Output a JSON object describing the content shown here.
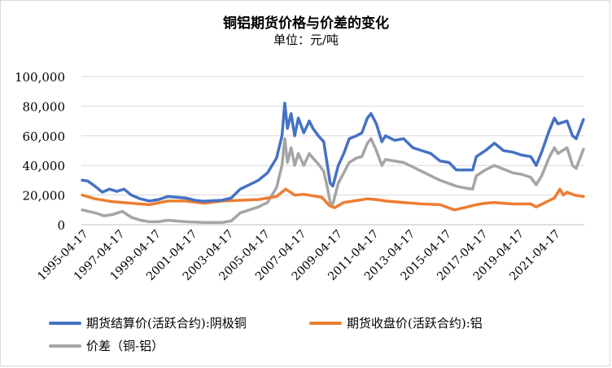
{
  "chart_data": {
    "type": "line",
    "title": "铜铝期货价格与价差的变化",
    "subtitle": "单位：元/吨",
    "ylim": [
      0,
      100000
    ],
    "yticks": [
      0,
      20000,
      40000,
      60000,
      80000,
      100000
    ],
    "ytick_labels": [
      "0",
      "20,000",
      "40,000",
      "60,000",
      "80,000",
      "100,000"
    ],
    "xlim": [
      1995.25,
      2022.95
    ],
    "xticks": [
      1995.29,
      1997.29,
      1999.29,
      2001.29,
      2003.29,
      2005.29,
      2007.29,
      2009.29,
      2011.29,
      2013.29,
      2015.29,
      2017.29,
      2019.29,
      2021.29
    ],
    "xtick_labels": [
      "1995-04-17",
      "1997-04-17",
      "1999-04-17",
      "2001-04-17",
      "2003-04-17",
      "2005-04-17",
      "2007-04-17",
      "2009-04-17",
      "2011-04-17",
      "2013-04-17",
      "2015-04-17",
      "2017-04-17",
      "2019-04-17",
      "2021-04-17"
    ],
    "legend_position": "bottom",
    "series": [
      {
        "name": "期货结算价(活跃合约):阴极铜",
        "color": "#4472C4",
        "x": [
          1995.3,
          1995.6,
          1996.0,
          1996.4,
          1996.8,
          1997.2,
          1997.6,
          1998.0,
          1998.5,
          1999.0,
          1999.5,
          2000.0,
          2000.5,
          2001.0,
          2001.5,
          2002.0,
          2002.5,
          2003.0,
          2003.5,
          2004.0,
          2004.5,
          2005.0,
          2005.5,
          2006.0,
          2006.3,
          2006.45,
          2006.6,
          2006.8,
          2007.0,
          2007.2,
          2007.5,
          2007.8,
          2008.0,
          2008.3,
          2008.6,
          2008.8,
          2008.95,
          2009.1,
          2009.4,
          2009.7,
          2010.0,
          2010.4,
          2010.7,
          2011.0,
          2011.2,
          2011.5,
          2011.8,
          2012.0,
          2012.5,
          2013.0,
          2013.5,
          2014.0,
          2014.5,
          2015.0,
          2015.5,
          2015.9,
          2016.3,
          2016.8,
          2017.0,
          2017.5,
          2018.0,
          2018.5,
          2019.0,
          2019.5,
          2020.0,
          2020.3,
          2020.6,
          2021.0,
          2021.3,
          2021.5,
          2022.0,
          2022.3,
          2022.5,
          2022.9
        ],
        "values": [
          30000,
          29500,
          26000,
          22000,
          24000,
          22500,
          24000,
          20000,
          17500,
          16000,
          17000,
          19000,
          18500,
          18000,
          16500,
          15800,
          16200,
          16500,
          18000,
          24000,
          27000,
          30000,
          35000,
          45000,
          60000,
          82000,
          65000,
          75000,
          60000,
          72000,
          62000,
          70000,
          65000,
          60000,
          56000,
          40000,
          28000,
          26000,
          40000,
          48000,
          58000,
          60000,
          62000,
          72000,
          75000,
          68000,
          56000,
          60000,
          57000,
          58000,
          52000,
          50000,
          48000,
          43000,
          42000,
          37000,
          37000,
          37000,
          46000,
          50000,
          55000,
          50000,
          49000,
          47000,
          46000,
          40000,
          49000,
          63000,
          72000,
          68000,
          70000,
          60000,
          58000,
          71000
        ]
      },
      {
        "name": "期货收盘价(活跃合约):铝",
        "color": "#ED7D31",
        "x": [
          1995.3,
          1996.0,
          1997.0,
          1998.0,
          1999.0,
          2000.0,
          2001.0,
          2002.0,
          2003.0,
          2004.0,
          2005.0,
          2006.0,
          2006.5,
          2007.0,
          2007.5,
          2008.0,
          2008.5,
          2008.9,
          2009.2,
          2009.7,
          2010.5,
          2011.0,
          2011.5,
          2012.0,
          2013.0,
          2014.0,
          2015.0,
          2015.8,
          2016.5,
          2017.0,
          2017.5,
          2018.0,
          2019.0,
          2020.0,
          2020.3,
          2020.8,
          2021.3,
          2021.6,
          2021.8,
          2022.0,
          2022.4,
          2022.9
        ],
        "values": [
          20000,
          17500,
          15500,
          14500,
          13500,
          16000,
          16000,
          14500,
          16000,
          16500,
          17000,
          19000,
          24000,
          20000,
          20500,
          19500,
          18500,
          13000,
          11500,
          15000,
          16500,
          17500,
          17000,
          16000,
          15000,
          14000,
          13500,
          10000,
          12000,
          13500,
          14500,
          15000,
          14000,
          14000,
          12000,
          15000,
          18000,
          24000,
          20000,
          22000,
          20000,
          19000
        ]
      },
      {
        "name": "价差（铜-铝）",
        "color": "#A5A5A5",
        "x": [
          1995.3,
          1996.0,
          1996.5,
          1997.0,
          1997.5,
          1998.0,
          1998.5,
          1999.0,
          1999.5,
          2000.0,
          2001.0,
          2002.0,
          2003.0,
          2003.5,
          2004.0,
          2005.0,
          2005.5,
          2006.0,
          2006.3,
          2006.45,
          2006.6,
          2006.8,
          2007.0,
          2007.2,
          2007.5,
          2007.8,
          2008.0,
          2008.3,
          2008.6,
          2008.8,
          2008.95,
          2009.1,
          2009.4,
          2009.7,
          2010.0,
          2010.4,
          2010.7,
          2011.0,
          2011.2,
          2011.5,
          2011.8,
          2012.0,
          2013.0,
          2014.0,
          2015.0,
          2015.9,
          2016.3,
          2016.8,
          2017.0,
          2017.5,
          2018.0,
          2019.0,
          2019.5,
          2020.0,
          2020.3,
          2020.6,
          2021.0,
          2021.3,
          2021.5,
          2022.0,
          2022.3,
          2022.5,
          2022.9
        ],
        "values": [
          10000,
          8000,
          6000,
          7000,
          9000,
          5000,
          3000,
          2000,
          2000,
          3000,
          2000,
          1500,
          1500,
          2500,
          8000,
          12000,
          15000,
          25000,
          40000,
          58000,
          42000,
          52000,
          40000,
          48000,
          40000,
          48000,
          45000,
          41000,
          36000,
          25000,
          15000,
          14000,
          28000,
          35000,
          42000,
          45000,
          46000,
          55000,
          58000,
          50000,
          40000,
          44000,
          42000,
          36000,
          30000,
          26000,
          25000,
          24000,
          33000,
          37000,
          40000,
          35000,
          34000,
          32000,
          27000,
          33000,
          45000,
          52000,
          48000,
          52000,
          40000,
          38000,
          51000
        ]
      }
    ]
  }
}
